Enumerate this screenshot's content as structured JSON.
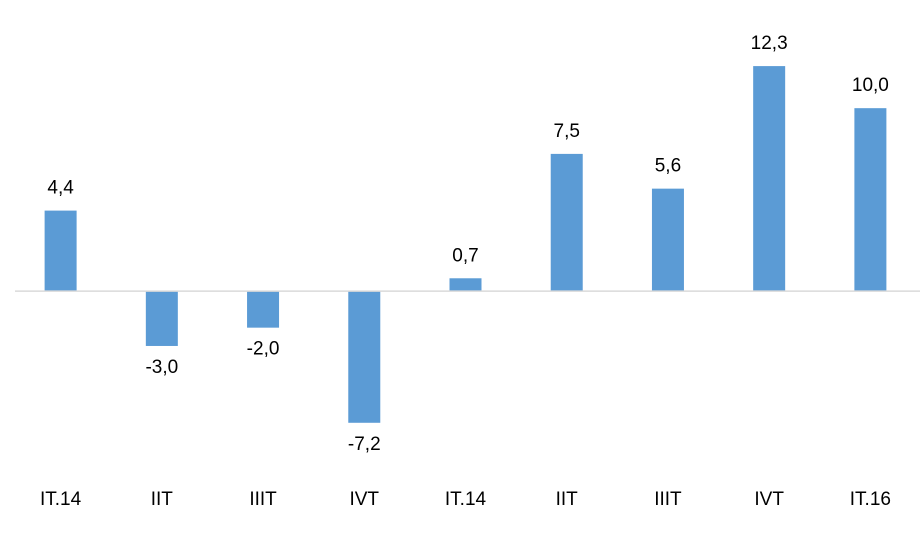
{
  "chart_data": {
    "type": "bar",
    "categories": [
      "IT.14",
      "IIT",
      "IIIT",
      "IVT",
      "IT.14",
      "IIT",
      "IIIT",
      "IVT",
      "IT.16"
    ],
    "values": [
      4.4,
      -3.0,
      -2.0,
      -7.2,
      0.7,
      7.5,
      5.6,
      12.3,
      10.0
    ],
    "value_labels": [
      "4,4",
      "-3,0",
      "-2,0",
      "-7,2",
      "0,7",
      "7,5",
      "5,6",
      "12,3",
      "10,0"
    ],
    "color": "#5b9bd5",
    "ylim": [
      -10,
      14
    ]
  }
}
